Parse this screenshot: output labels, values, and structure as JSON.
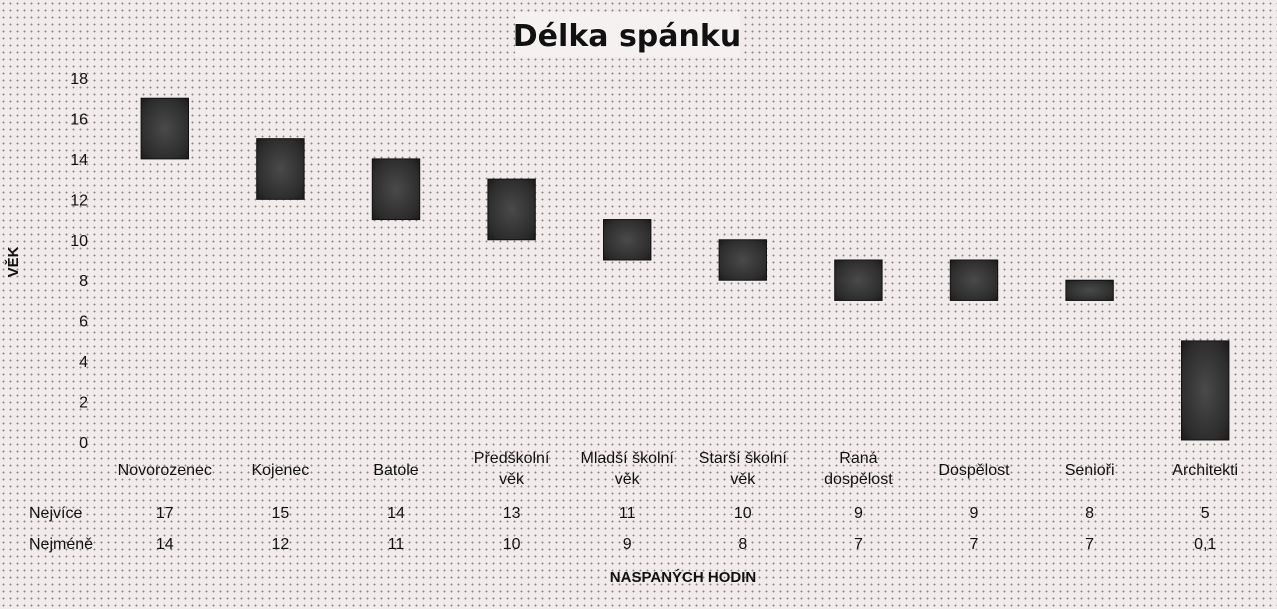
{
  "chart_data": {
    "type": "bar",
    "subtype": "floating-range",
    "title": "Délka spánku",
    "ylabel": "VĚK",
    "xlabel": "NASPANÝCH HODIN",
    "ylim": [
      0,
      18
    ],
    "yticks": [
      "0",
      "2",
      "4",
      "6",
      "8",
      "10",
      "12",
      "14",
      "16",
      "18"
    ],
    "categories": [
      [
        "Novorozenec"
      ],
      [
        "Kojenec"
      ],
      [
        "Batole"
      ],
      [
        "Předškolní",
        "věk"
      ],
      [
        "Mladší školní",
        "věk"
      ],
      [
        "Starší školní",
        "věk"
      ],
      [
        "Raná",
        "dospělost"
      ],
      [
        "Dospělost"
      ],
      [
        "Senioři"
      ],
      [
        "Architekti"
      ]
    ],
    "series": [
      {
        "name": "Nejvíce",
        "values": [
          17,
          15,
          14,
          13,
          11,
          10,
          9,
          9,
          8,
          5
        ],
        "labels": [
          "17",
          "15",
          "14",
          "13",
          "11",
          "10",
          "9",
          "9",
          "8",
          "5"
        ]
      },
      {
        "name": "Nejméně",
        "values": [
          14,
          12,
          11,
          10,
          9,
          8,
          7,
          7,
          7,
          0.1
        ],
        "labels": [
          "14",
          "12",
          "11",
          "10",
          "9",
          "8",
          "7",
          "7",
          "7",
          "0,1"
        ]
      }
    ],
    "bar_color": "#262626",
    "grid": false,
    "legend": "data-table-below"
  }
}
